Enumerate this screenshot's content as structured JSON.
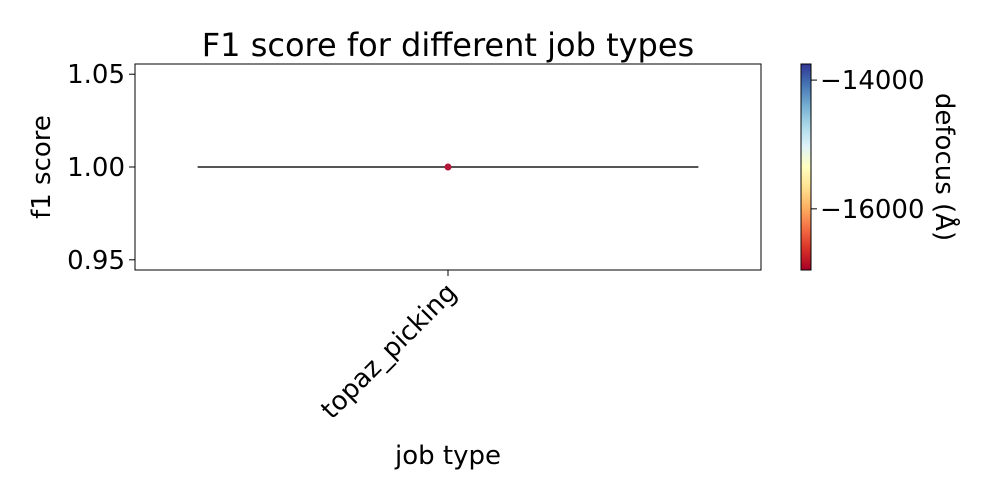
{
  "chart_data": {
    "type": "scatter",
    "title": "F1 score for different job types",
    "xlabel": "job type",
    "ylabel": "f1 score",
    "categories": [
      "topaz_picking"
    ],
    "ylim": [
      0.9445,
      1.0555
    ],
    "yticks": [
      0.95,
      1.0,
      1.05
    ],
    "ytick_labels": [
      "0.95",
      "1.00",
      "1.05"
    ],
    "grid": false,
    "median_lines": [
      {
        "category": "topaz_picking",
        "value": 1.0,
        "color": "#555555"
      }
    ],
    "points": [
      {
        "category": "topaz_picking",
        "f1": 1.0,
        "defocus": -16950,
        "color": "#b2163a"
      }
    ],
    "colorbar": {
      "label": "defocus (Å)",
      "range": [
        -16950,
        -13750
      ],
      "ticks": [
        -14000,
        -16000
      ],
      "tick_labels": [
        "−14000",
        "−16000"
      ],
      "colormap": "RdYlBu"
    }
  }
}
